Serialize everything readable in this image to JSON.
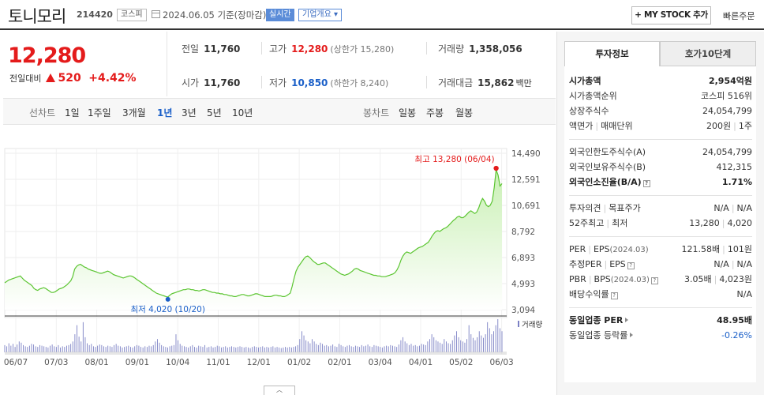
{
  "header": {
    "stock_name": "토니모리",
    "stock_code": "214420",
    "market": "코스피",
    "date_text": "2024.06.05 기준(장마감)",
    "realtime": "실시간",
    "company_overview": "기업개요 ▾",
    "mystock_button": "+ MY STOCK 추가",
    "quick_order": "빠른주문"
  },
  "price": {
    "current": "12,280",
    "change_label": "전일대비",
    "change_value": "520",
    "change_pct": "+4.42%",
    "prev_close_label": "전일",
    "prev_close": "11,760",
    "high_label": "고가",
    "high": "12,280",
    "upper_limit": "(상한가 15,280)",
    "volume_label": "거래량",
    "volume": "1,358,056",
    "open_label": "시가",
    "open": "11,760",
    "low_label": "저가",
    "low": "10,850",
    "lower_limit": "(하한가 8,240)",
    "amount_label": "거래대금",
    "amount": "15,862",
    "amount_unit": "백만"
  },
  "tabs": {
    "line_label": "선차트",
    "periods": [
      "1일",
      "1주일",
      "3개월",
      "1년",
      "3년",
      "5년",
      "10년"
    ],
    "active_period": "1년",
    "candle_label": "봉차트",
    "candles": [
      "일봉",
      "주봉",
      "월봉"
    ]
  },
  "chart_data": {
    "type": "area",
    "x_ticks": [
      "06/07",
      "07/03",
      "08/01",
      "09/01",
      "10/04",
      "11/01",
      "12/01",
      "01/02",
      "02/01",
      "03/04",
      "04/01",
      "05/02",
      "06/03"
    ],
    "y_ticks": [
      14490,
      12591,
      10691,
      8792,
      6893,
      4993,
      3094
    ],
    "ylim": [
      3094,
      14490
    ],
    "series": [
      {
        "values": [
          5050,
          5150,
          5250,
          5300,
          5350,
          5400,
          5450,
          5500,
          5550,
          5400,
          5250,
          5150,
          5050,
          4950,
          4850,
          4650,
          4550,
          4500,
          4600,
          4650,
          4700,
          4650,
          4550,
          4450,
          4350,
          4350,
          4400,
          4500,
          4600,
          4650,
          4700,
          4800,
          4900,
          5050,
          5200,
          5500,
          6050,
          6250,
          6350,
          6400,
          6300,
          6200,
          6150,
          6050,
          6000,
          5950,
          5900,
          5850,
          5800,
          5750,
          5750,
          5800,
          5850,
          5900,
          5850,
          5750,
          5650,
          5600,
          5550,
          5500,
          5450,
          5400,
          5450,
          5500,
          5550,
          5550,
          5500,
          5400,
          5300,
          5200,
          5100,
          5000,
          4900,
          4800,
          4700,
          4600,
          4500,
          4400,
          4300,
          4250,
          4200,
          4150,
          4100,
          4050,
          4020,
          4150,
          4250,
          4300,
          4350,
          4400,
          4450,
          4500,
          4550,
          4550,
          4600,
          4600,
          4550,
          4550,
          4500,
          4500,
          4450,
          4500,
          4550,
          4550,
          4500,
          4450,
          4400,
          4350,
          4350,
          4300,
          4300,
          4250,
          4250,
          4200,
          4200,
          4150,
          4100,
          4100,
          4050,
          4050,
          4100,
          4150,
          4200,
          4200,
          4150,
          4100,
          4100,
          4150,
          4200,
          4250,
          4250,
          4200,
          4150,
          4100,
          4050,
          4050,
          4050,
          4050,
          4100,
          4150,
          4150,
          4100,
          4100,
          4050,
          4050,
          4100,
          4200,
          4300,
          4800,
          5400,
          5900,
          6200,
          6400,
          6600,
          6800,
          6950,
          7000,
          6900,
          6750,
          6600,
          6500,
          6400,
          6400,
          6450,
          6500,
          6500,
          6400,
          6300,
          6200,
          6100,
          6000,
          5900,
          5800,
          5700,
          5650,
          5600,
          5650,
          5700,
          5800,
          5900,
          6050,
          6100,
          6050,
          5950,
          5900,
          5850,
          5800,
          5750,
          5700,
          5650,
          5600,
          5600,
          5550,
          5550,
          5500,
          5500,
          5500,
          5550,
          5600,
          5650,
          5700,
          5800,
          6000,
          6300,
          6700,
          7000,
          7200,
          7300,
          7250,
          7200,
          7300,
          7400,
          7500,
          7600,
          7650,
          7700,
          7800,
          7900,
          8000,
          8200,
          8450,
          8650,
          8800,
          8850,
          8800,
          8900,
          9000,
          9050,
          9150,
          9300,
          9450,
          9600,
          9700,
          9850,
          9900,
          9800,
          9800,
          9900,
          10050,
          10200,
          10300,
          10200,
          10100,
          10200,
          10500,
          10900,
          11200,
          11000,
          10700,
          10600,
          10700,
          11000,
          12000,
          13280,
          12900,
          12100,
          12280
        ]
      }
    ],
    "high_label": "최고 13,280 (06/04)",
    "low_label": "최저 4,020 (10/20)",
    "volume_label": "거래량",
    "volume": [
      12,
      10,
      15,
      11,
      14,
      9,
      13,
      18,
      16,
      12,
      10,
      9,
      11,
      14,
      13,
      10,
      9,
      12,
      11,
      10,
      9,
      8,
      11,
      13,
      10,
      9,
      12,
      8,
      10,
      9,
      11,
      12,
      14,
      18,
      30,
      45,
      26,
      18,
      50,
      25,
      15,
      12,
      14,
      10,
      9,
      11,
      13,
      12,
      10,
      9,
      11,
      10,
      9,
      12,
      14,
      11,
      10,
      8,
      9,
      10,
      11,
      9,
      8,
      10,
      12,
      11,
      9,
      8,
      10,
      9,
      11,
      10,
      12,
      18,
      22,
      16,
      12,
      10,
      9,
      8,
      10,
      11,
      12,
      30,
      20,
      14,
      11,
      10,
      9,
      8,
      10,
      12,
      9,
      8,
      11,
      10,
      9,
      12,
      8,
      9,
      10,
      8,
      9,
      11,
      10,
      8,
      9,
      10,
      8,
      9,
      10,
      9,
      8,
      9,
      10,
      9,
      8,
      9,
      8,
      7,
      9,
      10,
      9,
      8,
      9,
      10,
      8,
      9,
      8,
      9,
      10,
      8,
      9,
      8,
      7,
      8,
      9,
      8,
      9,
      8,
      9,
      10,
      12,
      22,
      35,
      28,
      20,
      18,
      15,
      22,
      18,
      14,
      12,
      16,
      14,
      11,
      12,
      10,
      11,
      13,
      10,
      9,
      14,
      12,
      10,
      9,
      11,
      12,
      10,
      9,
      11,
      10,
      9,
      12,
      10,
      11,
      13,
      10,
      9,
      12,
      11,
      10,
      9,
      8,
      10,
      11,
      10,
      12,
      11,
      10,
      9,
      13,
      20,
      25,
      18,
      15,
      12,
      14,
      11,
      12,
      10,
      11,
      14,
      13,
      12,
      18,
      22,
      30,
      25,
      20,
      18,
      16,
      14,
      22,
      18,
      15,
      14,
      20,
      28,
      35,
      25,
      20,
      18,
      16,
      22,
      45,
      30,
      24,
      20,
      25,
      35,
      28,
      24,
      30,
      50,
      40,
      30,
      35,
      45,
      55,
      40,
      35
    ]
  },
  "right_panel": {
    "tab_active": "투자정보",
    "tab_inactive": "호가10단계",
    "market_cap_label": "시가총액",
    "market_cap": "2,954억원",
    "market_cap_rank_label": "시가총액순위",
    "market_cap_rank_market": "코스피",
    "market_cap_rank": "516위",
    "shares_label": "상장주식수",
    "shares": "24,054,799",
    "par_label_a": "액면가",
    "par_label_b": "매매단위",
    "par_value": "200원",
    "par_unit": "1주",
    "foreign_limit_label": "외국인한도주식수(A)",
    "foreign_limit": "24,054,799",
    "foreign_hold_label": "외국인보유주식수(B)",
    "foreign_hold": "412,315",
    "foreign_ratio_label": "외국인소진율(B/A)",
    "foreign_ratio": "1.71%",
    "opinion_label_a": "투자의견",
    "opinion_label_b": "목표주가",
    "opinion_a": "N/A",
    "opinion_b": "N/A",
    "w52_label_a": "52주최고",
    "w52_label_b": "최저",
    "w52_high": "13,280",
    "w52_low": "4,020",
    "per_label_a": "PER",
    "per_label_b": "EPS",
    "per_label_date": "(2024.03)",
    "per_value": "121.58배",
    "eps_value": "101원",
    "est_per_label_a": "추정PER",
    "est_per_label_b": "EPS",
    "est_per": "N/A",
    "est_eps": "N/A",
    "pbr_label_a": "PBR",
    "pbr_label_b": "BPS",
    "pbr_label_date": "(2024.03)",
    "pbr_value": "3.05배",
    "bps_value": "4,023원",
    "dividend_label": "배당수익률",
    "dividend": "N/A",
    "sector_per_label": "동일업종 PER",
    "sector_per": "48.95배",
    "sector_rate_label": "동일업종 등락률",
    "sector_rate": "-0.26%"
  },
  "colors": {
    "up": "#e41b1b",
    "down": "#1a5fc8",
    "line": "#5bc531",
    "area_top": "#c9f0b4",
    "volume": "#7b80c4"
  },
  "collapse_icon": "chevron-up-icon"
}
